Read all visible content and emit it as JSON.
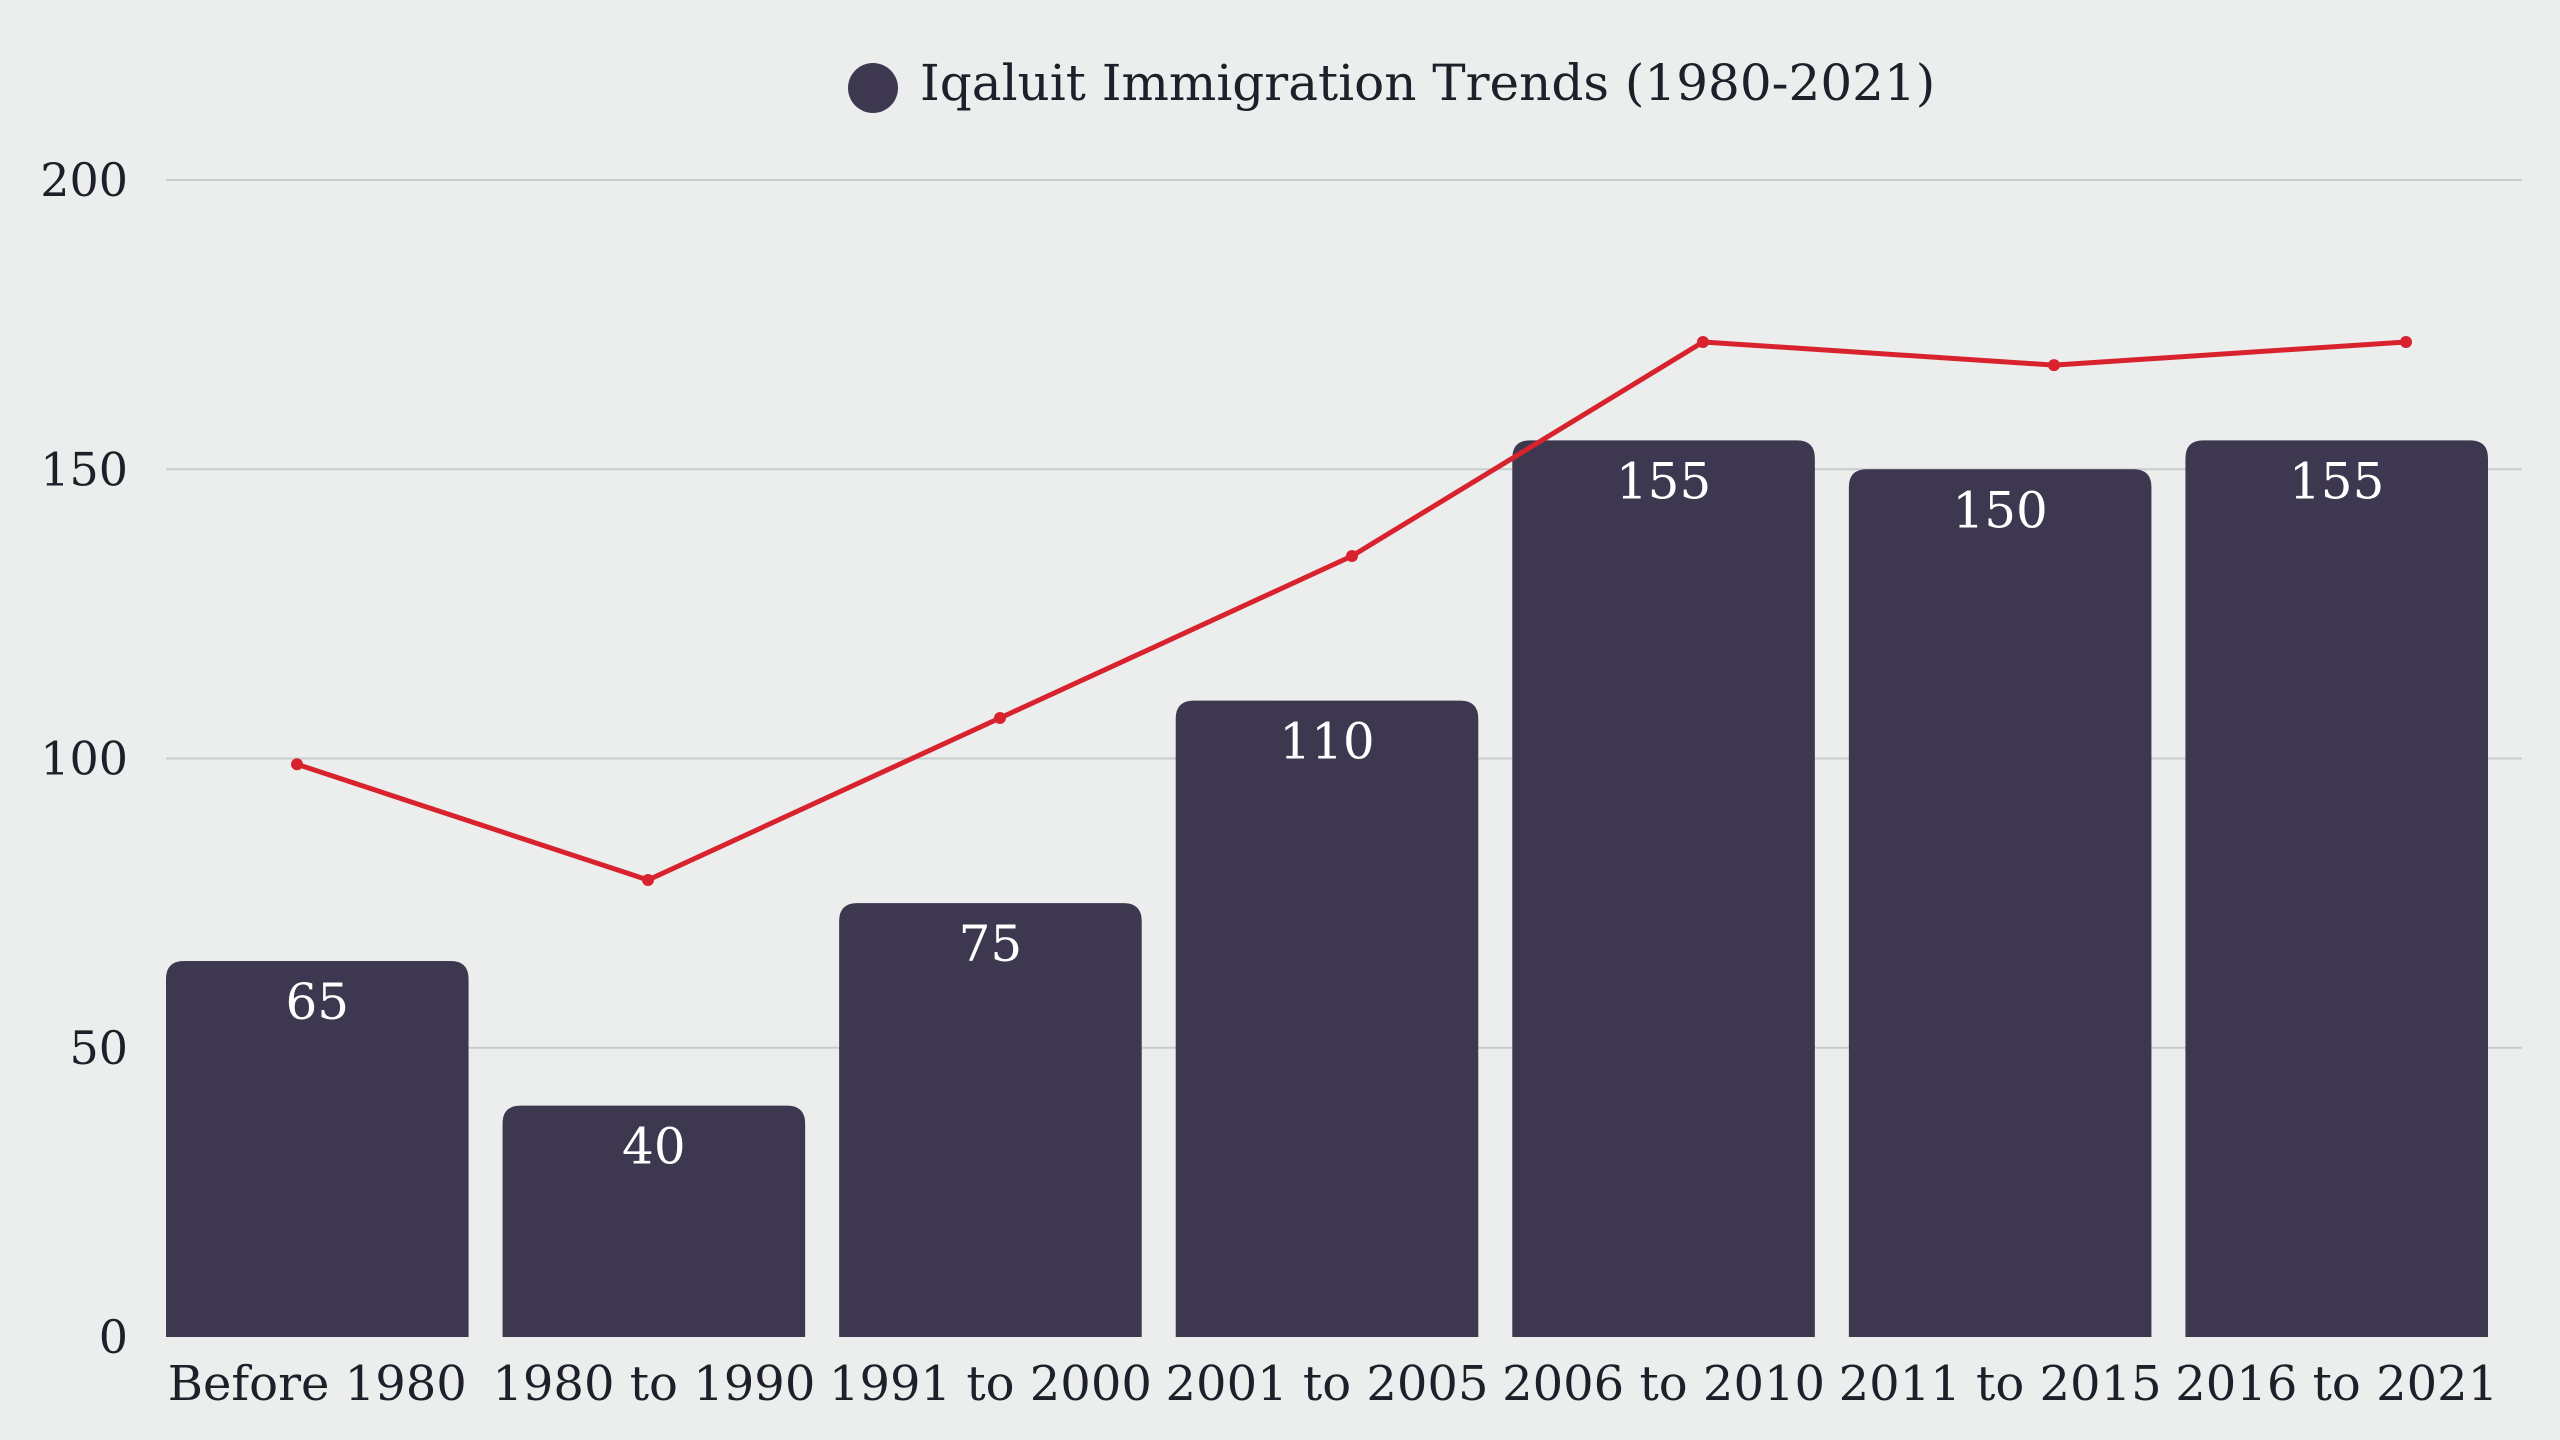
{
  "chart_data": {
    "type": "bar",
    "title": "",
    "xlabel": "",
    "ylabel": "",
    "categories": [
      "Before 1980",
      "1980 to 1990",
      "1991 to 2000",
      "2001 to 2005",
      "2006 to 2010",
      "2011 to 2015",
      "2016 to 2021"
    ],
    "series": [
      {
        "name": "Iqaluit Immigration Trends (1980-2021)",
        "type": "bar",
        "values": [
          65,
          40,
          75,
          110,
          155,
          150,
          155
        ],
        "show_labels": true
      },
      {
        "type": "line",
        "values": [
          99,
          79,
          107,
          135,
          172,
          168,
          172
        ],
        "show_labels": false
      }
    ],
    "ylim": [
      0,
      200
    ],
    "yticks": [
      0,
      50,
      100,
      150,
      200
    ],
    "grid": true,
    "legend_position": "top-center",
    "colors": {
      "bar": "#3d384f",
      "line": "#d8232f",
      "legend_marker": "#3d384f",
      "grid": "#c9cccb",
      "background": "#ebeeec"
    }
  }
}
